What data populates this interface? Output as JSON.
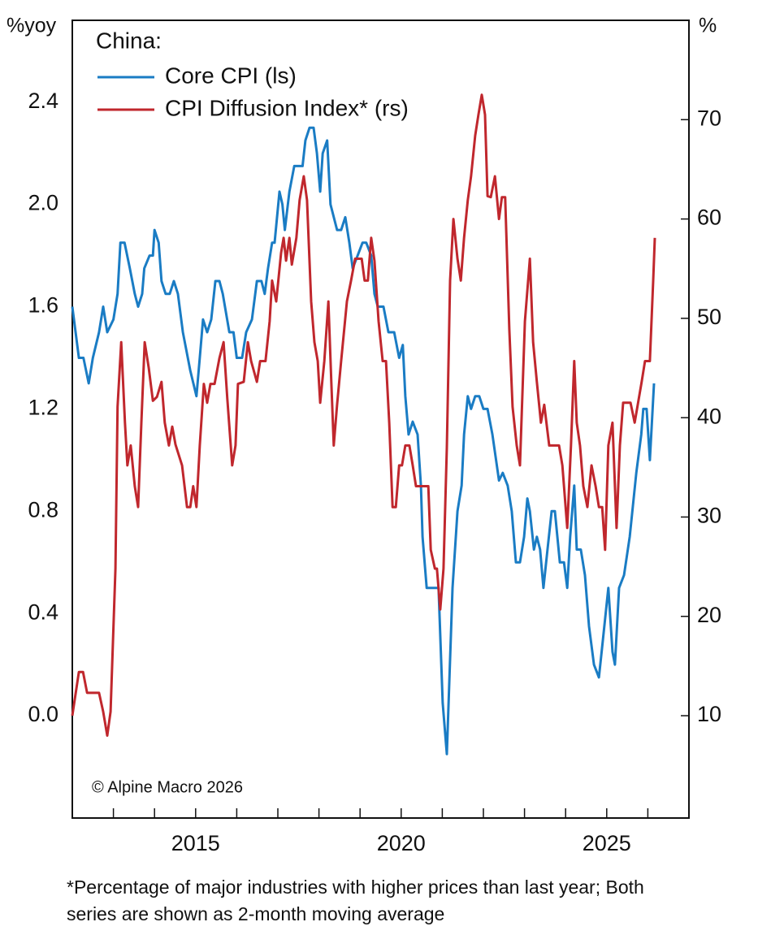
{
  "chart_data": {
    "type": "line",
    "y_label": "%yoy",
    "y2_label": "%",
    "legend_title": "China:",
    "watermark": "© Alpine Macro 2026",
    "footnote": "*Percentage of major industries with higher prices than last year; Both series are shown as 2-month moving average",
    "xlim": [
      2012,
      2027
    ],
    "xticks": [
      2015,
      2020,
      2025
    ],
    "xminorticks": [
      2013,
      2014,
      2016,
      2017,
      2018,
      2019,
      2021,
      2022,
      2023,
      2024,
      2026
    ],
    "ylim": [
      -0.4,
      2.72
    ],
    "yticks": [
      {
        "value": 0,
        "label": "0.0"
      },
      0.4,
      0.8,
      1.2,
      1.6,
      {
        "value": 2,
        "label": "2.0"
      },
      2.4
    ],
    "y2lim": [
      -0.3,
      80
    ],
    "y2ticks": [
      10,
      20,
      30,
      40,
      50,
      60,
      70
    ],
    "series": [
      {
        "name": "Core CPI (ls)",
        "color": "#1a7cc4",
        "axis": "y",
        "x": [
          2012.0,
          2012.16,
          2012.27,
          2012.4,
          2012.5,
          2012.65,
          2012.75,
          2012.85,
          2013.0,
          2013.1,
          2013.17,
          2013.27,
          2013.4,
          2013.52,
          2013.6,
          2013.7,
          2013.75,
          2013.88,
          2013.96,
          2014.0,
          2014.1,
          2014.17,
          2014.27,
          2014.37,
          2014.47,
          2014.57,
          2014.69,
          2014.87,
          2015.02,
          2015.1,
          2015.18,
          2015.28,
          2015.38,
          2015.48,
          2015.58,
          2015.66,
          2015.82,
          2015.92,
          2016.0,
          2016.13,
          2016.23,
          2016.37,
          2016.49,
          2016.6,
          2016.68,
          2016.76,
          2016.86,
          2016.92,
          2017.04,
          2017.11,
          2017.17,
          2017.28,
          2017.4,
          2017.6,
          2017.67,
          2017.77,
          2017.87,
          2017.95,
          2018.03,
          2018.09,
          2018.2,
          2018.28,
          2018.44,
          2018.54,
          2018.64,
          2018.74,
          2018.82,
          2018.94,
          2019.06,
          2019.15,
          2019.27,
          2019.35,
          2019.43,
          2019.57,
          2019.69,
          2019.83,
          2019.95,
          2020.04,
          2020.1,
          2020.18,
          2020.28,
          2020.4,
          2020.48,
          2020.52,
          2020.62,
          2020.83,
          2020.91,
          2021.01,
          2021.11,
          2021.25,
          2021.37,
          2021.47,
          2021.53,
          2021.62,
          2021.7,
          2021.8,
          2021.9,
          2022.0,
          2022.1,
          2022.22,
          2022.38,
          2022.47,
          2022.59,
          2022.69,
          2022.79,
          2022.89,
          2022.99,
          2023.07,
          2023.13,
          2023.23,
          2023.3,
          2023.38,
          2023.46,
          2023.56,
          2023.66,
          2023.74,
          2023.86,
          2023.96,
          2024.04,
          2024.11,
          2024.21,
          2024.27,
          2024.37,
          2024.47,
          2024.57,
          2024.69,
          2024.81,
          2024.91,
          2025.04,
          2025.14,
          2025.2,
          2025.3,
          2025.42,
          2025.56,
          2025.72,
          2025.84,
          2025.89,
          2025.97,
          2026.05,
          2026.15
        ],
        "values": [
          1.6,
          1.4,
          1.4,
          1.3,
          1.4,
          1.5,
          1.6,
          1.5,
          1.55,
          1.65,
          1.85,
          1.85,
          1.75,
          1.65,
          1.6,
          1.65,
          1.75,
          1.8,
          1.8,
          1.9,
          1.85,
          1.7,
          1.65,
          1.65,
          1.7,
          1.65,
          1.5,
          1.35,
          1.25,
          1.4,
          1.55,
          1.5,
          1.55,
          1.7,
          1.7,
          1.65,
          1.5,
          1.5,
          1.4,
          1.4,
          1.5,
          1.55,
          1.7,
          1.7,
          1.65,
          1.75,
          1.85,
          1.85,
          2.05,
          2.0,
          1.9,
          2.05,
          2.15,
          2.15,
          2.25,
          2.3,
          2.3,
          2.2,
          2.05,
          2.2,
          2.25,
          2.0,
          1.9,
          1.9,
          1.95,
          1.85,
          1.75,
          1.8,
          1.85,
          1.85,
          1.8,
          1.65,
          1.6,
          1.6,
          1.5,
          1.5,
          1.4,
          1.45,
          1.25,
          1.1,
          1.15,
          1.1,
          0.9,
          0.7,
          0.5,
          0.5,
          0.5,
          0.05,
          -0.15,
          0.5,
          0.8,
          0.9,
          1.1,
          1.25,
          1.2,
          1.25,
          1.25,
          1.2,
          1.2,
          1.1,
          0.92,
          0.95,
          0.9,
          0.8,
          0.6,
          0.6,
          0.7,
          0.85,
          0.8,
          0.65,
          0.7,
          0.65,
          0.5,
          0.65,
          0.8,
          0.8,
          0.6,
          0.6,
          0.5,
          0.7,
          0.9,
          0.65,
          0.65,
          0.55,
          0.35,
          0.2,
          0.15,
          0.3,
          0.5,
          0.25,
          0.2,
          0.5,
          0.55,
          0.7,
          0.95,
          1.1,
          1.2,
          1.2,
          1.0,
          1.3
        ]
      },
      {
        "name": "CPI Diffusion Index* (rs)",
        "color": "#c0272d",
        "axis": "y2",
        "x": [
          2012.0,
          2012.16,
          2012.26,
          2012.36,
          2012.65,
          2012.75,
          2012.85,
          2012.93,
          2013.05,
          2013.1,
          2013.19,
          2013.28,
          2013.34,
          2013.42,
          2013.52,
          2013.6,
          2013.68,
          2013.76,
          2013.86,
          2013.96,
          2014.06,
          2014.17,
          2014.25,
          2014.35,
          2014.43,
          2014.51,
          2014.67,
          2014.79,
          2014.87,
          2014.94,
          2015.02,
          2015.1,
          2015.2,
          2015.28,
          2015.36,
          2015.46,
          2015.58,
          2015.68,
          2015.77,
          2015.89,
          2015.97,
          2016.03,
          2016.17,
          2016.27,
          2016.35,
          2016.49,
          2016.57,
          2016.7,
          2016.8,
          2016.86,
          2016.96,
          2017.08,
          2017.14,
          2017.2,
          2017.28,
          2017.34,
          2017.45,
          2017.53,
          2017.63,
          2017.71,
          2017.81,
          2017.89,
          2017.97,
          2018.03,
          2018.13,
          2018.23,
          2018.3,
          2018.36,
          2018.44,
          2018.54,
          2018.68,
          2018.78,
          2018.88,
          2019.04,
          2019.11,
          2019.19,
          2019.27,
          2019.35,
          2019.45,
          2019.55,
          2019.63,
          2019.71,
          2019.79,
          2019.87,
          2019.95,
          2020.02,
          2020.1,
          2020.2,
          2020.28,
          2020.36,
          2020.56,
          2020.66,
          2020.72,
          2020.82,
          2020.87,
          2020.95,
          2021.03,
          2021.11,
          2021.19,
          2021.27,
          2021.37,
          2021.45,
          2021.53,
          2021.62,
          2021.7,
          2021.8,
          2021.88,
          2021.96,
          2022.04,
          2022.1,
          2022.18,
          2022.28,
          2022.38,
          2022.45,
          2022.53,
          2022.63,
          2022.71,
          2022.81,
          2022.89,
          2023.01,
          2023.13,
          2023.21,
          2023.3,
          2023.4,
          2023.48,
          2023.6,
          2023.84,
          2023.92,
          2024.04,
          2024.13,
          2024.21,
          2024.27,
          2024.35,
          2024.43,
          2024.53,
          2024.63,
          2024.73,
          2024.81,
          2024.89,
          2024.96,
          2025.04,
          2025.14,
          2025.24,
          2025.32,
          2025.4,
          2025.58,
          2025.68,
          2025.85,
          2025.93,
          2026.05,
          2026.13,
          2026.17
        ],
        "values": [
          10,
          14.4,
          14.4,
          12.3,
          12.3,
          10.4,
          8,
          10.4,
          24.8,
          41.1,
          47.6,
          39.5,
          35.2,
          37.2,
          33.1,
          31,
          39.5,
          47.6,
          45,
          41.7,
          42.1,
          43.6,
          39.5,
          37.2,
          39.1,
          37.3,
          35.2,
          31,
          31,
          33.1,
          31,
          37.2,
          43.4,
          41.5,
          43.4,
          43.4,
          46,
          47.6,
          41.9,
          35.2,
          37.2,
          43.4,
          43.6,
          47.6,
          45.7,
          43.6,
          45.7,
          45.7,
          49.7,
          53.8,
          51.7,
          56.6,
          58.1,
          55.8,
          58.1,
          55.4,
          58.1,
          61.9,
          64.3,
          61.9,
          51.7,
          47.6,
          45.7,
          41.5,
          45.7,
          51.7,
          43.6,
          37.2,
          41.3,
          45.7,
          51.7,
          53.8,
          56,
          56,
          53.8,
          53.8,
          58.1,
          55.8,
          49.7,
          45.7,
          45.7,
          39.5,
          31,
          31,
          35.2,
          35.2,
          37.2,
          37.2,
          35.2,
          33.1,
          33.1,
          33.1,
          26.7,
          24.8,
          24.8,
          20.7,
          24.8,
          37,
          53.8,
          60,
          56,
          53.8,
          58.1,
          61.9,
          64.3,
          68.4,
          70.5,
          72.5,
          70.5,
          62.3,
          62.2,
          64.3,
          60,
          62.2,
          62.2,
          48.9,
          41.1,
          37.2,
          35.2,
          49.7,
          56,
          47.6,
          43.6,
          39.5,
          41.3,
          37.2,
          37.2,
          35.2,
          28.9,
          37.2,
          45.7,
          39.5,
          37.2,
          33.1,
          31,
          35.2,
          33.1,
          31,
          31,
          26.7,
          37.2,
          39.5,
          28.9,
          37.2,
          41.5,
          41.5,
          39.5,
          43.6,
          45.7,
          45.7,
          53.8,
          58.1
        ]
      }
    ]
  }
}
